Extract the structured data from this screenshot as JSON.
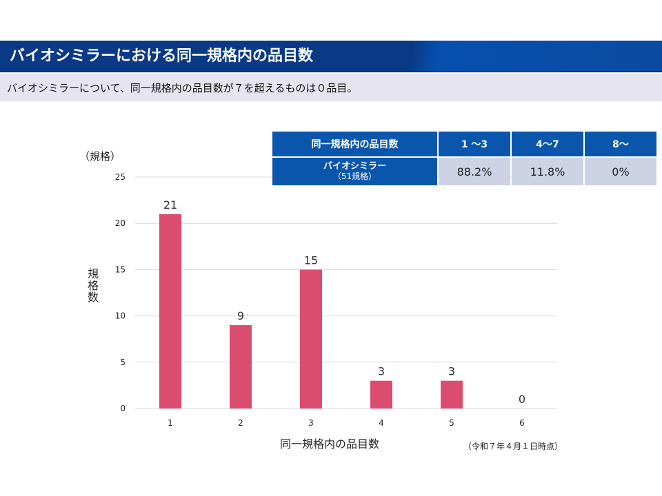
{
  "header": {
    "title": "バイオシミラーにおける同一規格内の品目数",
    "subtitle": "バイオシミラーについて、同一規格内の品目数が７を超えるものは０品目。"
  },
  "table": {
    "header": [
      "同一規格内の品目数",
      "1 〜3",
      "4〜7",
      "8〜"
    ],
    "row_label": "バイオシミラー",
    "row_sublabel": "（51規格）",
    "values": [
      "88.2%",
      "11.8%",
      "0%"
    ]
  },
  "chart_data": {
    "type": "bar",
    "categories": [
      "1",
      "2",
      "3",
      "4",
      "5",
      "6"
    ],
    "values": [
      21,
      9,
      15,
      3,
      3,
      0
    ],
    "ylim": [
      0,
      25
    ],
    "yticks": [
      0,
      5,
      10,
      15,
      20,
      25
    ],
    "ylabel": "規格数",
    "yunit": "（規格）",
    "xlabel": "同一規格内の品目数",
    "note": "（令和７年４月１日時点）",
    "bar_color": "#da4d6e"
  }
}
